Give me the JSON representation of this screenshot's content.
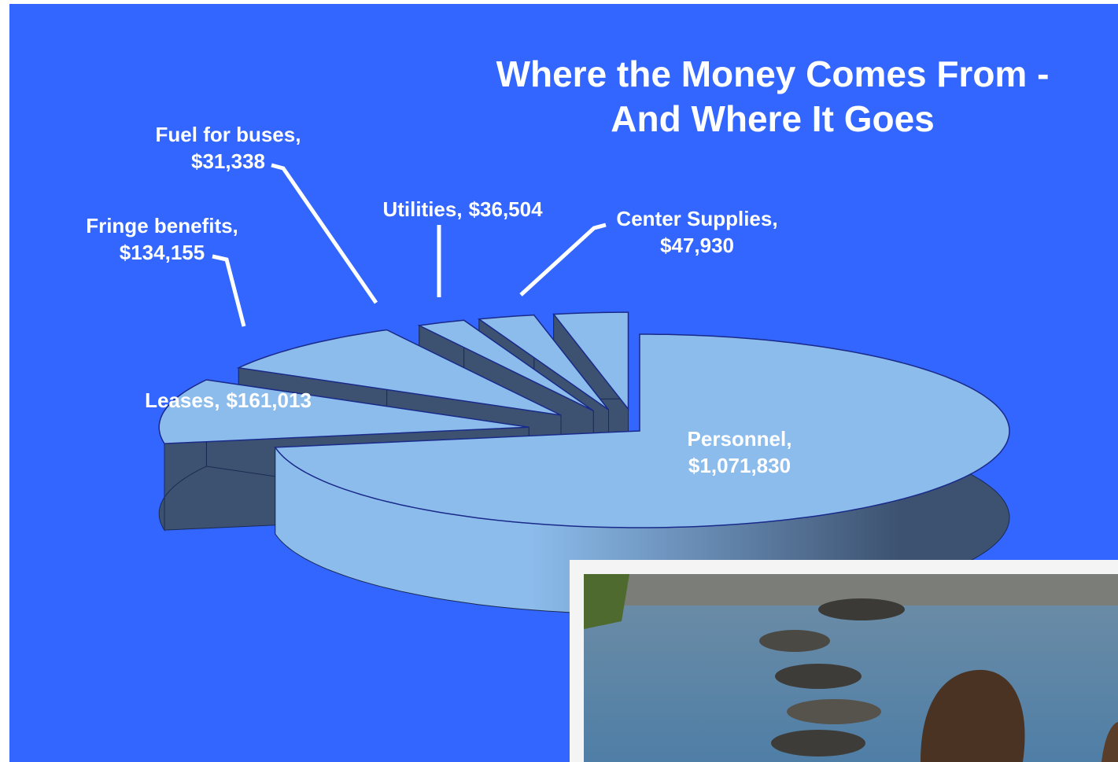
{
  "chart_data": {
    "type": "pie",
    "title": [
      "Where the Money Comes From -",
      "And Where It Goes"
    ],
    "categories": [
      "Personnel,",
      "Leases,",
      "Fringe benefits,",
      "Fuel for buses,",
      "Utilities,",
      "Center Supplies,"
    ],
    "values": [
      1071830,
      161013,
      134155,
      31338,
      36504,
      47930
    ],
    "value_labels": [
      "$1,071,830",
      "$161,013",
      "$134,155",
      "$31,338",
      "$36,504",
      "$47,930"
    ],
    "color": "#8cbcec"
  }
}
